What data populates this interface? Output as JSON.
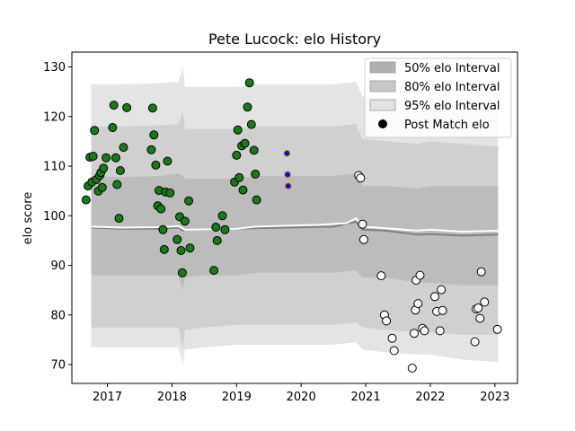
{
  "chart_data": {
    "type": "scatter",
    "title": "Pete Lucock: elo History",
    "xlabel": "",
    "ylabel": "elo score",
    "xlim": [
      2016.45,
      2023.35
    ],
    "ylim": [
      66.2,
      133.0
    ],
    "xticks": [
      2017,
      2018,
      2019,
      2020,
      2021,
      2022,
      2023
    ],
    "xtick_labels": [
      "2017",
      "2018",
      "2019",
      "2020",
      "2021",
      "2022",
      "2023"
    ],
    "yticks": [
      70,
      80,
      90,
      100,
      110,
      120,
      130
    ],
    "ytick_labels": [
      "70",
      "80",
      "90",
      "100",
      "110",
      "120",
      "130"
    ],
    "legend_position": "top-right",
    "legend": [
      {
        "label": "50% elo Interval",
        "kind": "patch",
        "color": "#b0b0b0"
      },
      {
        "label": "80% elo Interval",
        "kind": "patch",
        "color": "#c8c8c8"
      },
      {
        "label": "95% elo Interval",
        "kind": "patch",
        "color": "#e2e2e2"
      },
      {
        "label": "Post Match elo",
        "kind": "marker",
        "color": "#000000"
      }
    ],
    "bands": {
      "x": [
        2016.75,
        2017.2,
        2017.8,
        2018.1,
        2018.17,
        2018.2,
        2018.5,
        2019.0,
        2019.3,
        2019.8,
        2020.5,
        2020.85,
        2020.95,
        2021.3,
        2021.8,
        2022.0,
        2022.5,
        2023.05
      ],
      "p95_upper": [
        126.5,
        126.5,
        126.7,
        127.0,
        130.0,
        126.0,
        126.0,
        126.0,
        126.5,
        126.5,
        126.5,
        127.0,
        124.0,
        124.0,
        123.0,
        124.0,
        123.5,
        122.5
      ],
      "p80_upper": [
        118.0,
        118.0,
        118.2,
        118.5,
        121.0,
        117.5,
        117.5,
        117.5,
        118.0,
        118.0,
        118.0,
        118.5,
        115.5,
        115.0,
        114.5,
        115.0,
        114.5,
        114.0
      ],
      "p50_upper": [
        108.0,
        107.8,
        108.0,
        108.5,
        108.0,
        107.5,
        107.5,
        107.5,
        108.0,
        108.0,
        108.0,
        108.5,
        106.0,
        106.0,
        105.5,
        106.0,
        106.0,
        106.0
      ],
      "median": [
        97.6,
        97.4,
        97.4,
        97.6,
        97.0,
        97.2,
        97.3,
        97.4,
        97.5,
        97.6,
        97.8,
        98.8,
        97.2,
        97.0,
        96.2,
        96.3,
        96.0,
        96.2
      ],
      "p50_lower": [
        88.0,
        88.0,
        88.0,
        88.0,
        85.0,
        87.5,
        88.0,
        88.0,
        88.5,
        88.5,
        88.5,
        89.0,
        87.5,
        87.5,
        86.5,
        86.5,
        86.0,
        86.0
      ],
      "p80_lower": [
        77.5,
        77.5,
        77.5,
        77.5,
        73.0,
        77.0,
        77.5,
        78.0,
        78.0,
        78.0,
        78.0,
        78.5,
        77.5,
        77.0,
        76.5,
        76.5,
        76.0,
        76.0
      ],
      "p95_lower": [
        73.5,
        73.5,
        73.5,
        73.5,
        70.0,
        73.0,
        73.5,
        74.0,
        74.0,
        74.0,
        74.0,
        74.5,
        73.0,
        72.5,
        72.0,
        72.0,
        71.0,
        70.5
      ]
    },
    "mean_line": {
      "x": [
        2016.75,
        2017.2,
        2017.8,
        2018.1,
        2018.2,
        2018.6,
        2019.0,
        2019.3,
        2019.8,
        2020.3,
        2020.7,
        2020.85,
        2020.95,
        2021.3,
        2021.8,
        2022.0,
        2022.5,
        2023.05
      ],
      "y": [
        97.8,
        97.6,
        97.7,
        97.9,
        97.2,
        97.3,
        97.4,
        97.8,
        98.0,
        98.2,
        98.5,
        99.5,
        97.8,
        97.5,
        97.0,
        97.2,
        96.8,
        97.0
      ]
    },
    "series": [
      {
        "name": "Post Match elo",
        "kind": "won",
        "fill": "#1a7a1a",
        "points": [
          [
            2016.67,
            103.2
          ],
          [
            2016.7,
            106.0
          ],
          [
            2016.73,
            111.8
          ],
          [
            2016.76,
            106.8
          ],
          [
            2016.78,
            112.0
          ],
          [
            2016.8,
            117.2
          ],
          [
            2016.83,
            107.3
          ],
          [
            2016.86,
            105.0
          ],
          [
            2016.88,
            108.1
          ],
          [
            2016.9,
            108.7
          ],
          [
            2016.92,
            105.7
          ],
          [
            2016.94,
            109.6
          ],
          [
            2016.98,
            111.7
          ],
          [
            2017.08,
            117.8
          ],
          [
            2017.1,
            122.3
          ],
          [
            2017.13,
            111.7
          ],
          [
            2017.15,
            106.3
          ],
          [
            2017.18,
            99.5
          ],
          [
            2017.2,
            109.1
          ],
          [
            2017.25,
            113.8
          ],
          [
            2017.3,
            121.8
          ],
          [
            2017.68,
            113.3
          ],
          [
            2017.7,
            121.7
          ],
          [
            2017.72,
            116.3
          ],
          [
            2017.75,
            110.2
          ],
          [
            2017.78,
            102.0
          ],
          [
            2017.8,
            105.1
          ],
          [
            2017.83,
            101.4
          ],
          [
            2017.86,
            97.2
          ],
          [
            2017.88,
            93.2
          ],
          [
            2017.9,
            104.8
          ],
          [
            2017.93,
            111.0
          ],
          [
            2017.97,
            104.6
          ],
          [
            2018.08,
            95.2
          ],
          [
            2018.12,
            99.8
          ],
          [
            2018.14,
            93.0
          ],
          [
            2018.16,
            88.5
          ],
          [
            2018.2,
            98.9
          ],
          [
            2018.26,
            103.0
          ],
          [
            2018.28,
            93.5
          ],
          [
            2018.65,
            89.0
          ],
          [
            2018.68,
            97.7
          ],
          [
            2018.7,
            95.0
          ],
          [
            2018.78,
            100.0
          ],
          [
            2018.82,
            97.2
          ],
          [
            2018.97,
            106.8
          ],
          [
            2019.0,
            112.2
          ],
          [
            2019.02,
            117.3
          ],
          [
            2019.04,
            107.7
          ],
          [
            2019.08,
            114.1
          ],
          [
            2019.1,
            105.2
          ],
          [
            2019.13,
            114.6
          ],
          [
            2019.17,
            121.9
          ],
          [
            2019.2,
            126.8
          ],
          [
            2019.23,
            118.4
          ],
          [
            2019.27,
            113.2
          ],
          [
            2019.29,
            108.4
          ],
          [
            2019.31,
            103.2
          ]
        ]
      },
      {
        "name": "Post Match elo",
        "kind": "other",
        "fill": "#1010d0",
        "stroke": "#e8a020",
        "points": [
          [
            2019.78,
            112.6
          ],
          [
            2019.79,
            108.3
          ],
          [
            2019.8,
            106.0
          ]
        ]
      },
      {
        "name": "Post Match elo",
        "kind": "lost",
        "fill": "#ffffff",
        "points": [
          [
            2020.89,
            108.1
          ],
          [
            2020.92,
            107.6
          ],
          [
            2020.95,
            98.3
          ],
          [
            2020.97,
            95.2
          ],
          [
            2021.24,
            87.9
          ],
          [
            2021.29,
            80.0
          ],
          [
            2021.32,
            78.8
          ],
          [
            2021.41,
            75.3
          ],
          [
            2021.44,
            72.8
          ],
          [
            2021.72,
            69.3
          ],
          [
            2021.75,
            76.3
          ],
          [
            2021.77,
            81.0
          ],
          [
            2021.78,
            87.0
          ],
          [
            2021.81,
            82.3
          ],
          [
            2021.84,
            88.0
          ],
          [
            2021.88,
            77.3
          ],
          [
            2021.91,
            76.8
          ],
          [
            2022.07,
            83.7
          ],
          [
            2022.1,
            80.7
          ],
          [
            2022.15,
            76.8
          ],
          [
            2022.17,
            85.1
          ],
          [
            2022.19,
            80.9
          ],
          [
            2022.69,
            74.6
          ],
          [
            2022.71,
            81.2
          ],
          [
            2022.74,
            81.4
          ],
          [
            2022.77,
            79.3
          ],
          [
            2022.79,
            88.7
          ],
          [
            2022.84,
            82.6
          ],
          [
            2023.04,
            77.1
          ]
        ]
      }
    ]
  }
}
